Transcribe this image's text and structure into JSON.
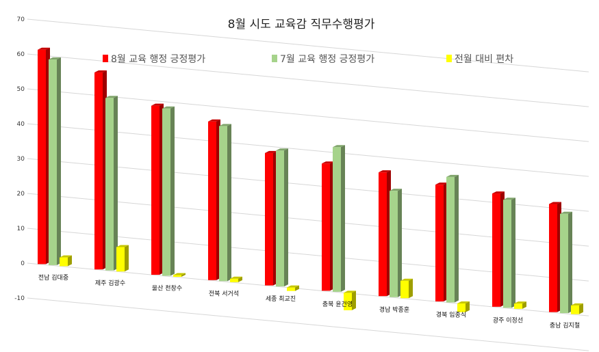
{
  "chart_data": {
    "type": "bar",
    "title": "8월 시도 교육감 직무수행평가",
    "categories": [
      "전남 김대중",
      "제주 김광수",
      "울산 천창수",
      "전북 서거석",
      "세종 최교진",
      "충북 윤건영",
      "경남 박종훈",
      "경북 임종식",
      "광주 이정선",
      "충남 김지철"
    ],
    "series": [
      {
        "name": "8월 교육 행정 긍정평가",
        "color": "#ff0000",
        "values": [
          61.5,
          56.5,
          48.5,
          45.5,
          38.0,
          36.5,
          35.5,
          33.5,
          32.5,
          31.0
        ]
      },
      {
        "name": "7월 교육 행정 긍정평가",
        "color": "#a6d38b",
        "values": [
          59.0,
          49.5,
          48.0,
          44.5,
          39.0,
          41.5,
          30.5,
          36.0,
          31.0,
          28.5
        ]
      },
      {
        "name": "전월 대비 편차",
        "color": "#ffff00",
        "values": [
          2.5,
          7.0,
          0.5,
          1.0,
          -1.0,
          -5.0,
          5.0,
          -2.5,
          1.5,
          2.5
        ]
      }
    ],
    "yticks": [
      "70",
      "60",
      "50",
      "40",
      "30",
      "20",
      "10",
      "0",
      "-10"
    ],
    "ylim": [
      -10,
      70
    ],
    "grid": true,
    "legend_position": "top"
  }
}
